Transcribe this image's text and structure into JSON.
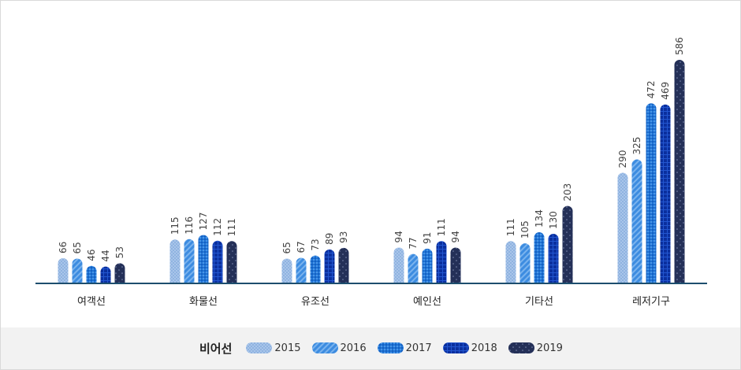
{
  "chart_data": {
    "type": "bar",
    "title": "",
    "xlabel": "",
    "ylabel": "",
    "categories": [
      "여객선",
      "화물선",
      "유조선",
      "예인선",
      "기타선",
      "레저기구"
    ],
    "series": [
      {
        "name": "2015",
        "values": [
          66,
          115,
          65,
          94,
          111,
          290
        ],
        "color": "#8fb3e0"
      },
      {
        "name": "2016",
        "values": [
          65,
          116,
          67,
          77,
          105,
          325
        ],
        "color": "#3d8ce0"
      },
      {
        "name": "2017",
        "values": [
          46,
          127,
          73,
          91,
          134,
          472
        ],
        "color": "#1f74d6"
      },
      {
        "name": "2018",
        "values": [
          44,
          112,
          89,
          111,
          130,
          469
        ],
        "color": "#0a2f9e"
      },
      {
        "name": "2019",
        "values": [
          53,
          111,
          93,
          94,
          203,
          586
        ],
        "color": "#243058"
      }
    ],
    "ylim": [
      0,
      600
    ],
    "grid": false,
    "legend": {
      "title": "비어선",
      "position": "bottom"
    },
    "axis_color": "#1d4e6e"
  }
}
